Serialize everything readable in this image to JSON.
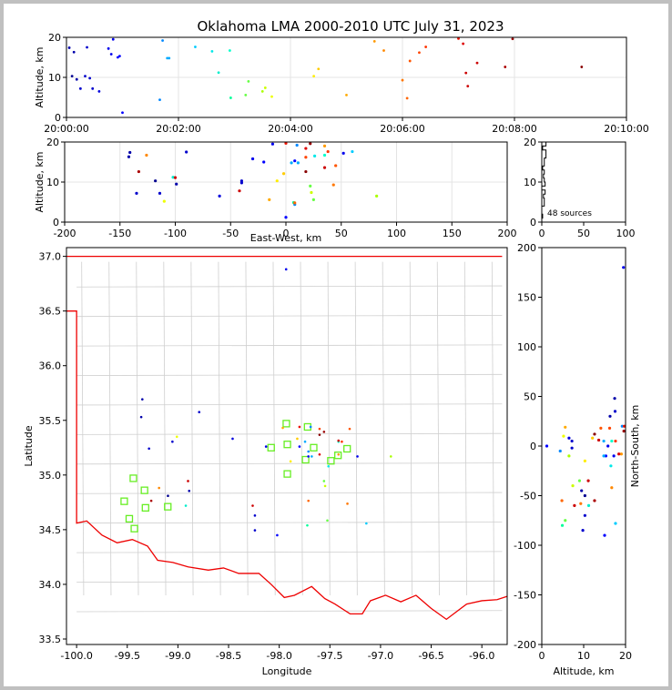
{
  "title": "Oklahoma LMA 2000-2010 UTC July 31, 2023",
  "source_count_label": "48 sources",
  "chart_data": [
    {
      "type": "scatter",
      "id": "time_height",
      "xlabel": "",
      "ylabel": "Altitude, km",
      "xlim_seconds": [
        0,
        600
      ],
      "xtick_labels": [
        "20:00:00",
        "20:02:00",
        "20:04:00",
        "20:06:00",
        "20:08:00",
        "20:10:00"
      ],
      "xticks": [
        0,
        120,
        240,
        360,
        480,
        600
      ],
      "ylim": [
        0,
        20
      ],
      "yticks": [
        0,
        10,
        20
      ]
    },
    {
      "type": "scatter",
      "id": "ew_altitude",
      "xlabel": "East-West, km",
      "ylabel": "Altitude, km",
      "xlim": [
        -200,
        200
      ],
      "xticks": [
        -200,
        -150,
        -100,
        -50,
        0,
        50,
        100,
        150,
        200
      ],
      "ylim": [
        0,
        20
      ],
      "yticks": [
        0,
        10,
        20
      ]
    },
    {
      "type": "histogram",
      "id": "altitude_histogram",
      "xlim": [
        0,
        100
      ],
      "xticks": [
        0,
        50,
        100
      ],
      "ylim": [
        0,
        20
      ],
      "yticks": [
        0,
        10,
        20
      ]
    },
    {
      "type": "scatter",
      "id": "plan_view",
      "xlabel": "Longitude",
      "ylabel": "Latitude",
      "xlim": [
        -100.1,
        -95.75
      ],
      "xticks": [
        -100.0,
        -99.5,
        -99.0,
        -98.5,
        -98.0,
        -97.5,
        -97.0,
        -96.5,
        -96.0
      ],
      "ylim": [
        33.45,
        37.08
      ],
      "yticks": [
        33.5,
        34.0,
        34.5,
        35.0,
        35.5,
        36.0,
        36.5,
        37.0
      ],
      "stations": [
        [
          -99.44,
          34.97
        ],
        [
          -99.33,
          34.86
        ],
        [
          -99.53,
          34.76
        ],
        [
          -99.32,
          34.7
        ],
        [
          -99.1,
          34.71
        ],
        [
          -99.48,
          34.6
        ],
        [
          -99.43,
          34.51
        ],
        [
          -97.93,
          35.47
        ],
        [
          -97.72,
          35.44
        ],
        [
          -98.08,
          35.25
        ],
        [
          -97.92,
          35.28
        ],
        [
          -97.66,
          35.25
        ],
        [
          -97.33,
          35.24
        ],
        [
          -97.42,
          35.18
        ],
        [
          -97.74,
          35.14
        ],
        [
          -97.49,
          35.13
        ],
        [
          -97.92,
          35.01
        ]
      ]
    },
    {
      "type": "scatter",
      "id": "ns_altitude",
      "xlabel": "Altitude, km",
      "ylabel": "North-South, km",
      "xlim": [
        0,
        20
      ],
      "xticks": [
        0,
        10,
        20
      ],
      "ylim": [
        -200,
        200
      ],
      "yticks": [
        -200,
        -150,
        -100,
        -50,
        0,
        50,
        100,
        150,
        200
      ]
    }
  ],
  "sources": [
    {
      "t": 3,
      "alt": 17.4,
      "ew": -141,
      "ns": 48,
      "c": "#0000aa"
    },
    {
      "t": 8,
      "alt": 16.3,
      "ew": -142,
      "ns": 30,
      "c": "#0000aa"
    },
    {
      "t": 6,
      "alt": 10.3,
      "ew": -118,
      "ns": -50,
      "c": "#000090"
    },
    {
      "t": 11,
      "alt": 9.5,
      "ew": -99,
      "ns": -45,
      "c": "#0000aa"
    },
    {
      "t": 15,
      "alt": 7.2,
      "ew": -114,
      "ns": 5,
      "c": "#0000cc"
    },
    {
      "t": 20,
      "alt": 10.3,
      "ew": -40,
      "ns": -70,
      "c": "#0000cc"
    },
    {
      "t": 22,
      "alt": 17.5,
      "ew": -90,
      "ns": 35,
      "c": "#0000cc"
    },
    {
      "t": 25,
      "alt": 9.8,
      "ew": -40,
      "ns": -85,
      "c": "#0000cc"
    },
    {
      "t": 28,
      "alt": 7.2,
      "ew": -135,
      "ns": -2,
      "c": "#0000cc"
    },
    {
      "t": 35,
      "alt": 6.5,
      "ew": -60,
      "ns": 8,
      "c": "#0000dd"
    },
    {
      "t": 45,
      "alt": 17.2,
      "ew": 52,
      "ns": -10,
      "c": "#0000ee"
    },
    {
      "t": 48,
      "alt": 15.8,
      "ew": -30,
      "ns": 0,
      "c": "#0000ee"
    },
    {
      "t": 50,
      "alt": 19.5,
      "ew": -12,
      "ns": 180,
      "c": "#0000ee"
    },
    {
      "t": 55,
      "alt": 15.0,
      "ew": -20,
      "ns": -90,
      "c": "#0000ff"
    },
    {
      "t": 60,
      "alt": 1.2,
      "ew": 0,
      "ns": 0,
      "c": "#0000ff"
    },
    {
      "t": 57,
      "alt": 15.3,
      "ew": 8,
      "ns": -10,
      "c": "#0000ff"
    },
    {
      "t": 100,
      "alt": 4.4,
      "ew": 8,
      "ns": -5,
      "c": "#0088ff"
    },
    {
      "t": 103,
      "alt": 19.2,
      "ew": 10,
      "ns": 20,
      "c": "#0088ff"
    },
    {
      "t": 108,
      "alt": 14.8,
      "ew": 5,
      "ns": 5,
      "c": "#00aaff"
    },
    {
      "t": 110,
      "alt": 14.8,
      "ew": 11,
      "ns": -10,
      "c": "#00aaff"
    },
    {
      "t": 138,
      "alt": 17.6,
      "ew": 60,
      "ns": -78,
      "c": "#00ccff"
    },
    {
      "t": 156,
      "alt": 16.5,
      "ew": 26,
      "ns": -20,
      "c": "#00e8e8"
    },
    {
      "t": 163,
      "alt": 11.2,
      "ew": -102,
      "ns": -60,
      "c": "#00eecc"
    },
    {
      "t": 176,
      "alt": 4.9,
      "ew": 7,
      "ns": -80,
      "c": "#00ff99"
    },
    {
      "t": 175,
      "alt": 16.7,
      "ew": 35,
      "ns": 5,
      "c": "#00ffcc"
    },
    {
      "t": 192,
      "alt": 5.6,
      "ew": 25,
      "ns": -75,
      "c": "#66ff44"
    },
    {
      "t": 195,
      "alt": 9.0,
      "ew": 22,
      "ns": -35,
      "c": "#66ff44"
    },
    {
      "t": 210,
      "alt": 6.5,
      "ew": 82,
      "ns": -10,
      "c": "#aaff00"
    },
    {
      "t": 213,
      "alt": 7.4,
      "ew": 23,
      "ns": -40,
      "c": "#ccff00"
    },
    {
      "t": 220,
      "alt": 5.2,
      "ew": -110,
      "ns": 10,
      "c": "#eeff00"
    },
    {
      "t": 265,
      "alt": 10.3,
      "ew": -8,
      "ns": -15,
      "c": "#ffee00"
    },
    {
      "t": 270,
      "alt": 12.1,
      "ew": -2,
      "ns": 8,
      "c": "#ffcc00"
    },
    {
      "t": 300,
      "alt": 5.6,
      "ew": -15,
      "ns": 19,
      "c": "#ffaa00"
    },
    {
      "t": 330,
      "alt": 19.0,
      "ew": 35,
      "ns": -8,
      "c": "#ff9900"
    },
    {
      "t": 340,
      "alt": 16.7,
      "ew": -126,
      "ns": -42,
      "c": "#ff8800"
    },
    {
      "t": 360,
      "alt": 9.3,
      "ew": 43,
      "ns": -58,
      "c": "#ff7700"
    },
    {
      "t": 365,
      "alt": 4.8,
      "ew": 8,
      "ns": -55,
      "c": "#ff6600"
    },
    {
      "t": 368,
      "alt": 14.1,
      "ew": 45,
      "ns": 18,
      "c": "#ff5500"
    },
    {
      "t": 378,
      "alt": 16.2,
      "ew": 18,
      "ns": 18,
      "c": "#ff4400"
    },
    {
      "t": 385,
      "alt": 17.6,
      "ew": 38,
      "ns": 5,
      "c": "#ff3300"
    },
    {
      "t": 420,
      "alt": 19.7,
      "ew": 0,
      "ns": 20,
      "c": "#ee1100"
    },
    {
      "t": 425,
      "alt": 18.4,
      "ew": 18,
      "ns": -8,
      "c": "#dd0000"
    },
    {
      "t": 428,
      "alt": 11.1,
      "ew": -100,
      "ns": -35,
      "c": "#cc0000"
    },
    {
      "t": 430,
      "alt": 7.8,
      "ew": -42,
      "ns": -60,
      "c": "#cc0000"
    },
    {
      "t": 440,
      "alt": 13.6,
      "ew": 35,
      "ns": 6,
      "c": "#cc0000"
    },
    {
      "t": 470,
      "alt": 12.6,
      "ew": -133,
      "ns": -55,
      "c": "#aa0000"
    },
    {
      "t": 478,
      "alt": 19.6,
      "ew": 22,
      "ns": 15,
      "c": "#990000"
    },
    {
      "t": 552,
      "alt": 12.6,
      "ew": 18,
      "ns": 12,
      "c": "#880000"
    }
  ]
}
